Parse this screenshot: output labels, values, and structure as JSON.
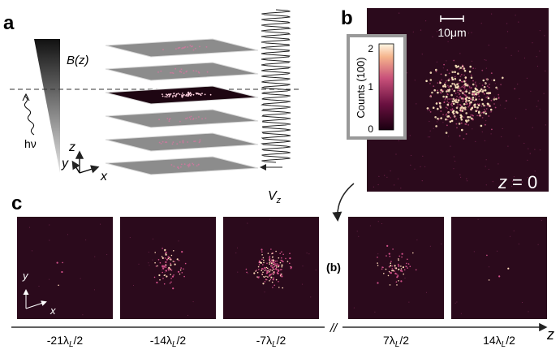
{
  "panel_labels": {
    "a": "a",
    "b": "b",
    "c": "c"
  },
  "panel_a": {
    "field_label": "B(z)",
    "photon_label": "hν",
    "axis_z": "z",
    "axis_y": "y",
    "axis_x": "x",
    "voltage_label": "V",
    "voltage_subscript": "z",
    "num_layers": 6,
    "highlight_layer_index": 2
  },
  "panel_b": {
    "scalebar_label": "10μm",
    "colorbar_title": "Counts (100)",
    "colorbar_ticks": [
      "2",
      "1",
      "0"
    ],
    "z_label_var": "z",
    "z_label_value": "= 0",
    "colors": {
      "background": "#2b0a1c",
      "atom_hot": "#ffe8c0",
      "atom_mid": "#d2508a"
    }
  },
  "panel_c": {
    "middle_marker": "(b)",
    "axis_y": "y",
    "axis_x": "x",
    "z_axis_label": "z",
    "axis_break": "//",
    "ticks": [
      {
        "pre": "-21",
        "post": "/2"
      },
      {
        "pre": "-14",
        "post": "/2"
      },
      {
        "pre": "-7",
        "post": "/2"
      },
      {
        "pre": "7",
        "post": "/2"
      },
      {
        "pre": "14",
        "post": "/2"
      }
    ],
    "tick_symbol": "λ",
    "tick_subscript": "L",
    "density": [
      0.02,
      0.35,
      0.7,
      0.3,
      0.02
    ]
  }
}
